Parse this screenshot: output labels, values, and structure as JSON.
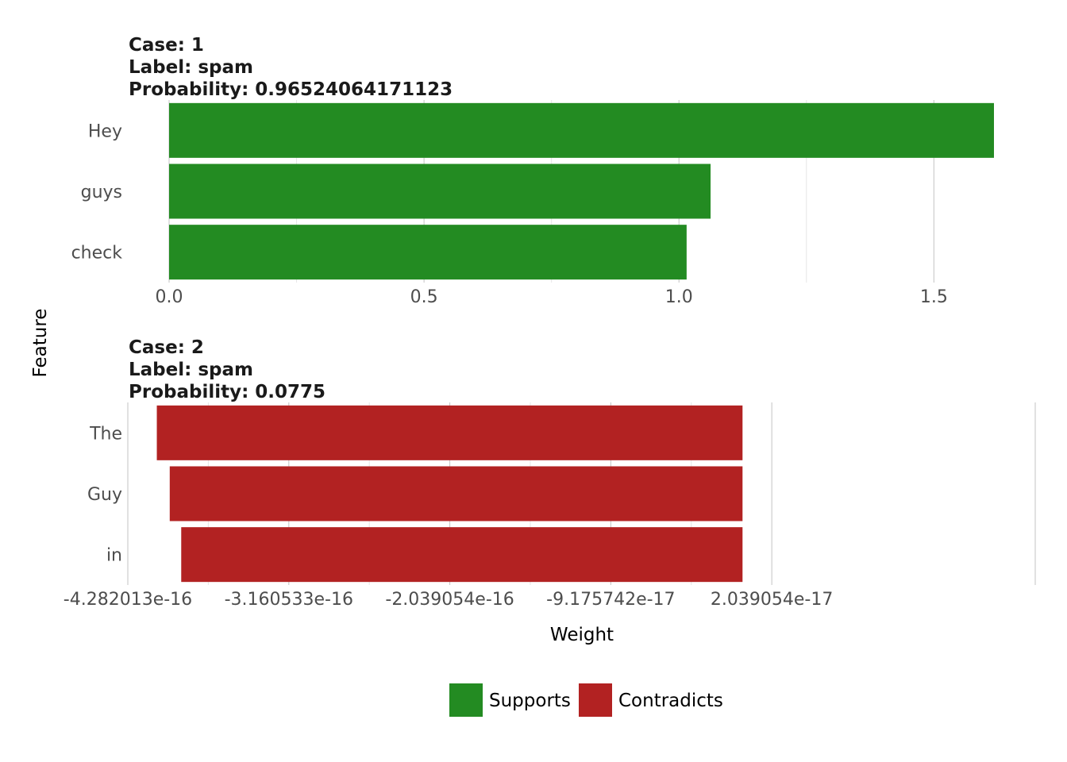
{
  "chart_data": {
    "type": "bar",
    "orientation": "horizontal",
    "ylabel": "Feature",
    "xlabel": "Weight",
    "colors": {
      "Supports": "#238b22",
      "Contradicts": "#b22222"
    },
    "legend": {
      "position": "bottom",
      "items": [
        {
          "label": "Supports",
          "color": "#238b22"
        },
        {
          "label": "Contradicts",
          "color": "#b22222"
        }
      ]
    },
    "panels": [
      {
        "title_lines": [
          "Case: 1",
          "Label: spam",
          "Probability: 0.96524064171123"
        ],
        "xlim": [
          0,
          1.6178
        ],
        "ticks": [
          {
            "value": 0,
            "label": "0.0"
          },
          {
            "value": 0.5,
            "label": "0.5"
          },
          {
            "value": 1.0,
            "label": "1.0"
          },
          {
            "value": 1.5,
            "label": "1.5"
          }
        ],
        "minor_ticks": [
          0.25,
          0.75,
          1.25
        ],
        "categories": [
          "Hey",
          "guys",
          "check"
        ],
        "bars": [
          {
            "feature": "Hey",
            "start": 0,
            "end": 1.6178,
            "type": "Supports"
          },
          {
            "feature": "guys",
            "start": 0,
            "end": 1.062,
            "type": "Supports"
          },
          {
            "feature": "check",
            "start": 0,
            "end": 1.015,
            "type": "Supports"
          }
        ]
      },
      {
        "title_lines": [
          "Case: 2",
          "Label: spam",
          "Probability: 0.0775"
        ],
        "xlim": [
          -4.282013e-16,
          2.039054e-16
        ],
        "ticks": [
          {
            "value": -4.282013e-16,
            "label": "-4.282013e-16"
          },
          {
            "value": -3.160533e-16,
            "label": "-3.160533e-16"
          },
          {
            "value": -2.039054e-16,
            "label": "-2.039054e-16"
          },
          {
            "value": -9.175742e-17,
            "label": "-9.175742e-17"
          },
          {
            "value": 2.039054e-17,
            "label": "2.039054e-17"
          }
        ],
        "minor_ticks": [
          -3.721273e-16,
          -2.599793e-16,
          -1.478314e-16,
          -3.56834e-17
        ],
        "categories": [
          "The",
          "Guy",
          "in"
        ],
        "bars": [
          {
            "feature": "The",
            "start": -4.08e-16,
            "end": 0,
            "type": "Contradicts"
          },
          {
            "feature": "Guy",
            "start": -3.99e-16,
            "end": 0,
            "type": "Contradicts"
          },
          {
            "feature": "in",
            "start": -3.91e-16,
            "end": 0,
            "type": "Contradicts"
          }
        ]
      }
    ]
  }
}
